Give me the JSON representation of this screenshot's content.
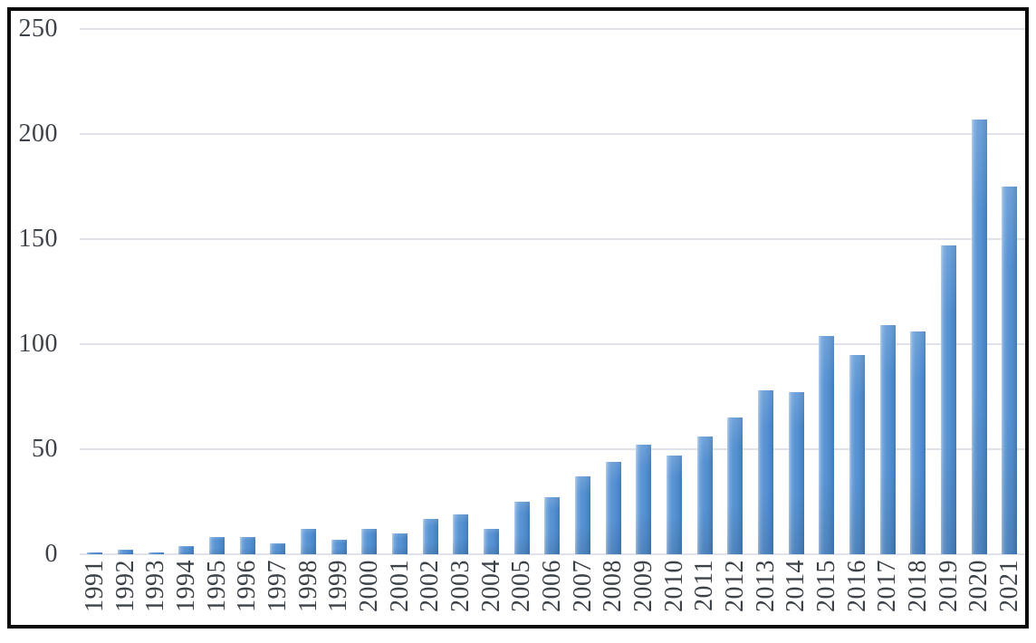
{
  "chart_data": {
    "type": "bar",
    "title": "",
    "xlabel": "",
    "ylabel": "",
    "categories": [
      "1991",
      "1992",
      "1993",
      "1994",
      "1995",
      "1996",
      "1997",
      "1998",
      "1999",
      "2000",
      "2001",
      "2002",
      "2003",
      "2004",
      "2005",
      "2006",
      "2007",
      "2008",
      "2009",
      "2010",
      "2011",
      "2012",
      "2013",
      "2014",
      "2015",
      "2016",
      "2017",
      "2018",
      "2019",
      "2020",
      "2021"
    ],
    "values": [
      1,
      2,
      1,
      4,
      8,
      8,
      5,
      12,
      7,
      12,
      10,
      17,
      19,
      12,
      25,
      27,
      37,
      44,
      52,
      47,
      56,
      65,
      78,
      77,
      104,
      95,
      109,
      106,
      147,
      207,
      175
    ],
    "ylim": [
      0,
      250
    ],
    "yticks": [
      0,
      50,
      100,
      150,
      200,
      250
    ],
    "grid": true,
    "legend": false,
    "colors": {
      "bar_main": "#5b94d3",
      "bar_light_edge": "#aecdec",
      "bar_dark_edge": "#4379b3",
      "gridline": "#dfe3e9",
      "axis_text": "#3d4249",
      "frame_border": "#0a0a0a",
      "background": "#ffffff"
    }
  }
}
